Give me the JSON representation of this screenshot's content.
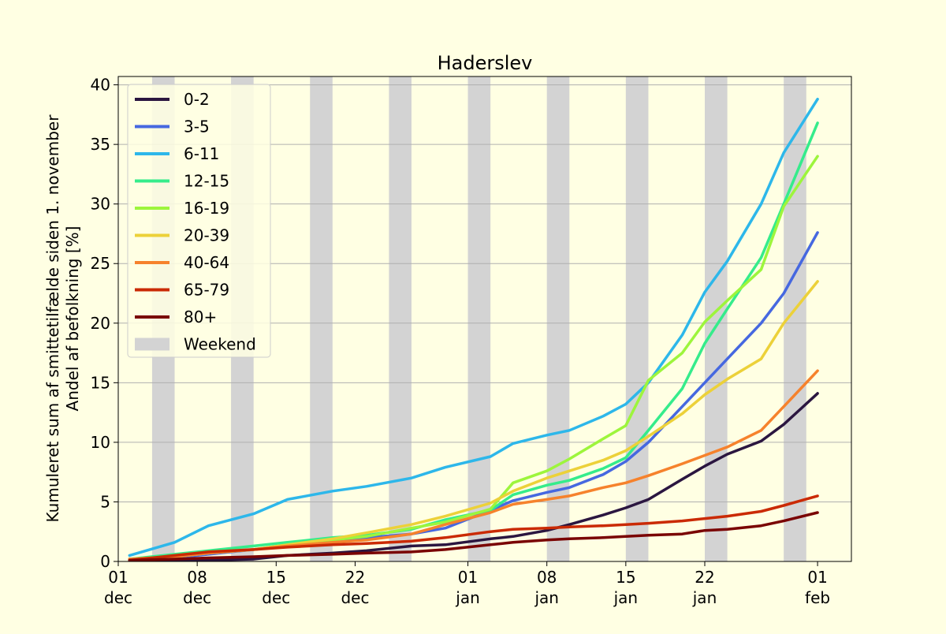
{
  "chart_data": {
    "type": "line",
    "title": "Haderslev",
    "ylabel_line1": "Kumuleret sum af smittetilfælde siden 1. november",
    "ylabel_line2": "Andel af befolkning [%]",
    "xlim": [
      "2021-12-01",
      "2022-02-04"
    ],
    "ylim": [
      0,
      40.7
    ],
    "yticks": [
      0,
      5,
      10,
      15,
      20,
      25,
      30,
      35,
      40
    ],
    "xticks": [
      {
        "date": "2021-12-01",
        "top": "01",
        "bottom": "dec"
      },
      {
        "date": "2021-12-08",
        "top": "08",
        "bottom": "dec"
      },
      {
        "date": "2021-12-15",
        "top": "15",
        "bottom": "dec"
      },
      {
        "date": "2021-12-22",
        "top": "22",
        "bottom": "dec"
      },
      {
        "date": "2022-01-01",
        "top": "01",
        "bottom": "jan"
      },
      {
        "date": "2022-01-08",
        "top": "08",
        "bottom": "jan"
      },
      {
        "date": "2022-01-15",
        "top": "15",
        "bottom": "jan"
      },
      {
        "date": "2022-01-22",
        "top": "22",
        "bottom": "jan"
      },
      {
        "date": "2022-02-01",
        "top": "01",
        "bottom": "feb"
      }
    ],
    "grid": "horizontal",
    "legend_position": "upper-left",
    "weekend_label": "Weekend",
    "weekend_color": "#d3d3d3",
    "weekends": [
      [
        "2021-12-04",
        "2021-12-06"
      ],
      [
        "2021-12-11",
        "2021-12-13"
      ],
      [
        "2021-12-18",
        "2021-12-20"
      ],
      [
        "2021-12-25",
        "2021-12-27"
      ],
      [
        "2022-01-01",
        "2022-01-03"
      ],
      [
        "2022-01-08",
        "2022-01-10"
      ],
      [
        "2022-01-15",
        "2022-01-17"
      ],
      [
        "2022-01-22",
        "2022-01-24"
      ],
      [
        "2022-01-29",
        "2022-01-31"
      ]
    ],
    "x_dates": [
      "2021-12-02",
      "2021-12-06",
      "2021-12-09",
      "2021-12-13",
      "2021-12-16",
      "2021-12-20",
      "2021-12-23",
      "2021-12-27",
      "2021-12-30",
      "2022-01-03",
      "2022-01-05",
      "2022-01-08",
      "2022-01-10",
      "2022-01-13",
      "2022-01-15",
      "2022-01-17",
      "2022-01-20",
      "2022-01-22",
      "2022-01-24",
      "2022-01-27",
      "2022-01-29",
      "2022-02-01"
    ],
    "series": [
      {
        "name": "0-2",
        "color": "#2b1640",
        "values": [
          0.1,
          0.1,
          0.1,
          0.2,
          0.5,
          0.7,
          0.9,
          1.3,
          1.4,
          1.9,
          2.1,
          2.6,
          3.1,
          3.9,
          4.5,
          5.2,
          6.9,
          8.0,
          9.0,
          10.1,
          11.5,
          14.1
        ]
      },
      {
        "name": "3-5",
        "color": "#4668e0",
        "values": [
          0.2,
          0.3,
          0.6,
          1.0,
          1.3,
          1.6,
          2.0,
          2.3,
          2.8,
          4.3,
          5.1,
          5.8,
          6.2,
          7.3,
          8.4,
          10.0,
          13.0,
          15.0,
          17.0,
          20.0,
          22.5,
          27.6
        ]
      },
      {
        "name": "6-11",
        "color": "#2db7ea",
        "values": [
          0.5,
          1.6,
          3.0,
          4.0,
          5.2,
          5.9,
          6.3,
          7.0,
          7.9,
          8.8,
          9.9,
          10.6,
          11.0,
          12.2,
          13.2,
          15.0,
          19.0,
          22.6,
          25.2,
          30.0,
          34.3,
          38.8
        ]
      },
      {
        "name": "12-15",
        "color": "#35ec8b",
        "values": [
          0.2,
          0.6,
          0.9,
          1.3,
          1.6,
          2.0,
          2.2,
          2.7,
          3.5,
          4.3,
          5.6,
          6.4,
          6.8,
          7.8,
          8.7,
          11.0,
          14.5,
          18.3,
          21.2,
          25.5,
          30.0,
          36.8
        ]
      },
      {
        "name": "16-19",
        "color": "#9df53c",
        "values": [
          0.2,
          0.4,
          0.7,
          1.0,
          1.4,
          1.8,
          2.1,
          2.8,
          3.3,
          4.4,
          6.6,
          7.6,
          8.6,
          10.3,
          11.4,
          15.2,
          17.5,
          20.1,
          21.9,
          24.5,
          29.8,
          34.0
        ]
      },
      {
        "name": "20-39",
        "color": "#ecd139",
        "values": [
          0.2,
          0.4,
          0.7,
          1.0,
          1.4,
          1.9,
          2.4,
          3.1,
          3.8,
          4.9,
          5.9,
          7.0,
          7.6,
          8.5,
          9.3,
          10.5,
          12.4,
          14.0,
          15.3,
          17.0,
          20.0,
          23.5
        ]
      },
      {
        "name": "40-64",
        "color": "#f6822c",
        "values": [
          0.2,
          0.4,
          0.7,
          1.0,
          1.3,
          1.6,
          1.8,
          2.3,
          3.1,
          4.1,
          4.8,
          5.2,
          5.5,
          6.2,
          6.6,
          7.2,
          8.2,
          8.9,
          9.6,
          11.0,
          13.0,
          16.0
        ]
      },
      {
        "name": "65-79",
        "color": "#ca2a04",
        "values": [
          0.1,
          0.5,
          0.8,
          1.0,
          1.2,
          1.4,
          1.5,
          1.7,
          2.0,
          2.5,
          2.7,
          2.8,
          2.9,
          3.0,
          3.1,
          3.2,
          3.4,
          3.6,
          3.8,
          4.2,
          4.7,
          5.5
        ]
      },
      {
        "name": "80+",
        "color": "#7a0403",
        "values": [
          0.1,
          0.2,
          0.3,
          0.4,
          0.5,
          0.6,
          0.7,
          0.8,
          1.0,
          1.4,
          1.6,
          1.8,
          1.9,
          2.0,
          2.1,
          2.2,
          2.3,
          2.6,
          2.7,
          3.0,
          3.4,
          4.1
        ]
      }
    ]
  }
}
